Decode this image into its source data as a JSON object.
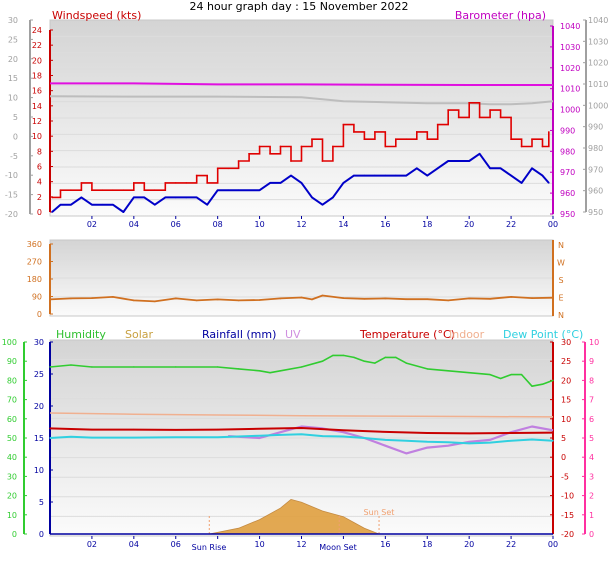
{
  "title": "24 hour graph day : 15 November 2022",
  "colors": {
    "wind": "#e00000",
    "wind_avg": "#0000c8",
    "barometer": "#e010e0",
    "baro_grey": "#bdbdbd",
    "direction": "#d07020",
    "humidity": "#30cc30",
    "solar": "#e0a040",
    "rainfall": "#0000a0",
    "uv": "#c080e0",
    "temperature": "#c80000",
    "indoor": "#f0b090",
    "dewpoint": "#30d0e0",
    "axis_left": "#a0a0a0",
    "axis_green": "#30cc30",
    "axis_pink": "#ff30a0",
    "axis_orange": "#d07020"
  },
  "chart_data": [
    {
      "type": "line",
      "panel": "wind-barometer",
      "series_labels": {
        "wind": "Windspeed (kts)",
        "barometer": "Barometer (hpa)"
      },
      "x_ticks": [
        "02",
        "04",
        "06",
        "08",
        "10",
        "12",
        "14",
        "16",
        "18",
        "20",
        "22",
        "00"
      ],
      "xlim": [
        0,
        24
      ],
      "outer_left_ticks": [
        "30",
        "25",
        "20",
        "15",
        "10",
        "5",
        "0",
        "-5",
        "-10",
        "-15",
        "-20"
      ],
      "wind_ticks": [
        "24",
        "22",
        "20",
        "18",
        "16",
        "14",
        "12",
        "10",
        "8",
        "6",
        "4",
        "2",
        "0"
      ],
      "baro_ticks": [
        "1040",
        "1030",
        "1020",
        "1010",
        "1000",
        "990",
        "980",
        "970",
        "960",
        "950"
      ],
      "outer_right_ticks": [
        "1040",
        "1030",
        "1020",
        "1010",
        "1000",
        "990",
        "980",
        "970",
        "960",
        "950"
      ],
      "wind_ylim": [
        0,
        25
      ],
      "baro_ylim": [
        950,
        1045
      ],
      "wind_gust": [
        [
          0.1,
          2
        ],
        [
          0.5,
          3
        ],
        [
          1,
          3
        ],
        [
          1.5,
          4
        ],
        [
          2,
          3
        ],
        [
          2.5,
          3
        ],
        [
          3,
          3
        ],
        [
          3.5,
          3
        ],
        [
          4,
          4
        ],
        [
          4.5,
          3
        ],
        [
          5,
          3
        ],
        [
          5.5,
          4
        ],
        [
          6,
          4
        ],
        [
          6.5,
          4
        ],
        [
          7,
          5
        ],
        [
          7.5,
          4
        ],
        [
          8,
          6
        ],
        [
          8.5,
          6
        ],
        [
          9,
          7
        ],
        [
          9.5,
          8
        ],
        [
          10,
          9
        ],
        [
          10.5,
          8
        ],
        [
          11,
          9
        ],
        [
          11.5,
          7
        ],
        [
          12,
          9
        ],
        [
          12.5,
          10
        ],
        [
          13,
          7
        ],
        [
          13.5,
          9
        ],
        [
          14,
          12
        ],
        [
          14.5,
          11
        ],
        [
          15,
          10
        ],
        [
          15.5,
          11
        ],
        [
          16,
          9
        ],
        [
          16.5,
          10
        ],
        [
          17,
          10
        ],
        [
          17.5,
          11
        ],
        [
          18,
          10
        ],
        [
          18.5,
          12
        ],
        [
          19,
          14
        ],
        [
          19.5,
          13
        ],
        [
          20,
          15
        ],
        [
          20.5,
          13
        ],
        [
          21,
          14
        ],
        [
          21.5,
          13
        ],
        [
          22,
          10
        ],
        [
          22.5,
          9
        ],
        [
          23,
          10
        ],
        [
          23.5,
          9
        ],
        [
          23.8,
          11
        ]
      ],
      "wind_avg": [
        [
          0.1,
          0
        ],
        [
          0.5,
          1
        ],
        [
          1,
          1
        ],
        [
          1.5,
          2
        ],
        [
          2,
          1
        ],
        [
          2.5,
          1
        ],
        [
          3,
          1
        ],
        [
          3.5,
          0
        ],
        [
          4,
          2
        ],
        [
          4.5,
          2
        ],
        [
          5,
          1
        ],
        [
          5.5,
          2
        ],
        [
          6,
          2
        ],
        [
          6.5,
          2
        ],
        [
          7,
          2
        ],
        [
          7.5,
          1
        ],
        [
          8,
          3
        ],
        [
          8.5,
          3
        ],
        [
          9,
          3
        ],
        [
          9.5,
          3
        ],
        [
          10,
          3
        ],
        [
          10.5,
          4
        ],
        [
          11,
          4
        ],
        [
          11.5,
          5
        ],
        [
          12,
          4
        ],
        [
          12.5,
          2
        ],
        [
          13,
          1
        ],
        [
          13.5,
          2
        ],
        [
          14,
          4
        ],
        [
          14.5,
          5
        ],
        [
          15,
          5
        ],
        [
          15.5,
          5
        ],
        [
          16,
          5
        ],
        [
          16.5,
          5
        ],
        [
          17,
          5
        ],
        [
          17.5,
          6
        ],
        [
          18,
          5
        ],
        [
          18.5,
          6
        ],
        [
          19,
          7
        ],
        [
          19.5,
          7
        ],
        [
          20,
          7
        ],
        [
          20.5,
          8
        ],
        [
          21,
          6
        ],
        [
          21.5,
          6
        ],
        [
          22,
          5
        ],
        [
          22.5,
          4
        ],
        [
          23,
          6
        ],
        [
          23.5,
          5
        ],
        [
          23.8,
          4
        ]
      ],
      "barometer": [
        [
          0,
          1016
        ],
        [
          4,
          1016
        ],
        [
          8,
          1015.5
        ],
        [
          12,
          1015.5
        ],
        [
          16,
          1015.3
        ],
        [
          20,
          1015.2
        ],
        [
          24,
          1015.2
        ]
      ],
      "barometer_grey": [
        [
          0,
          1009.5
        ],
        [
          4,
          1009.3
        ],
        [
          8,
          1009.3
        ],
        [
          12,
          1009
        ],
        [
          13,
          1008
        ],
        [
          14,
          1007
        ],
        [
          16,
          1006.5
        ],
        [
          18,
          1006
        ],
        [
          20,
          1006
        ],
        [
          21,
          1005.5
        ],
        [
          22,
          1005.5
        ],
        [
          23,
          1006
        ],
        [
          24,
          1007
        ]
      ]
    },
    {
      "type": "line",
      "panel": "wind-direction",
      "x_ticks": [
        "02",
        "04",
        "06",
        "08",
        "10",
        "12",
        "14",
        "16",
        "18",
        "20",
        "22",
        "00"
      ],
      "xlim": [
        0,
        24
      ],
      "left_ticks": [
        "360",
        "270",
        "180",
        "90",
        "0"
      ],
      "right_ticks": [
        "N",
        "W",
        "S",
        "E",
        "N"
      ],
      "ylim": [
        0,
        360
      ],
      "direction": [
        [
          0,
          75
        ],
        [
          1,
          80
        ],
        [
          2,
          82
        ],
        [
          3,
          88
        ],
        [
          4,
          70
        ],
        [
          5,
          65
        ],
        [
          6,
          80
        ],
        [
          7,
          70
        ],
        [
          8,
          75
        ],
        [
          9,
          70
        ],
        [
          10,
          72
        ],
        [
          11,
          80
        ],
        [
          12,
          85
        ],
        [
          12.5,
          75
        ],
        [
          13,
          95
        ],
        [
          14,
          82
        ],
        [
          15,
          78
        ],
        [
          16,
          80
        ],
        [
          17,
          76
        ],
        [
          18,
          76
        ],
        [
          19,
          70
        ],
        [
          20,
          80
        ],
        [
          21,
          78
        ],
        [
          22,
          88
        ],
        [
          23,
          82
        ],
        [
          24,
          84
        ]
      ]
    },
    {
      "type": "line",
      "panel": "temperature-humidity",
      "series_labels": {
        "humidity": "Humidity",
        "solar": "Solar",
        "rainfall": "Rainfall (mm)",
        "uv": "UV",
        "temperature": "Temperature (°C)",
        "indoor": "Indoor",
        "dewpoint": "Dew Point (°C)"
      },
      "x_ticks": [
        "02",
        "04",
        "06",
        "",
        "10",
        "12",
        "",
        "16",
        "18",
        "20",
        "22",
        "00"
      ],
      "xlim": [
        0,
        24
      ],
      "humidity_ticks": [
        "100",
        "90",
        "80",
        "70",
        "60",
        "50",
        "40",
        "30",
        "20",
        "10",
        "0"
      ],
      "rain_ticks": [
        "30",
        "25",
        "20",
        "15",
        "10",
        "5",
        "0"
      ],
      "temp_ticks": [
        "30",
        "25",
        "20",
        "15",
        "10",
        "5",
        "0",
        "-5",
        "-10",
        "-15",
        "-20"
      ],
      "uv_ticks": [
        "10",
        "9",
        "8",
        "7",
        "6",
        "5",
        "4",
        "3",
        "2",
        "1",
        "0"
      ],
      "annotations": {
        "sunrise": "Sun Rise",
        "moonset": "Moon Set",
        "sunset": "Sun Set"
      },
      "event_times": {
        "sunrise": 7.6,
        "moonset": 13.8,
        "sunset": 15.7
      },
      "humidity": [
        [
          0,
          87
        ],
        [
          1,
          88
        ],
        [
          2,
          87
        ],
        [
          4,
          87
        ],
        [
          6,
          87
        ],
        [
          8,
          87
        ],
        [
          9,
          86
        ],
        [
          10,
          85
        ],
        [
          10.5,
          84
        ],
        [
          11,
          85
        ],
        [
          12,
          87
        ],
        [
          13,
          90
        ],
        [
          13.5,
          93
        ],
        [
          14,
          93
        ],
        [
          14.5,
          92
        ],
        [
          15,
          90
        ],
        [
          15.5,
          89
        ],
        [
          16,
          92
        ],
        [
          16.5,
          92
        ],
        [
          17,
          89
        ],
        [
          18,
          86
        ],
        [
          19,
          85
        ],
        [
          20,
          84
        ],
        [
          21,
          83
        ],
        [
          21.5,
          81
        ],
        [
          22,
          83
        ],
        [
          22.5,
          83
        ],
        [
          23,
          77
        ],
        [
          23.5,
          78
        ],
        [
          24,
          80
        ]
      ],
      "temperature": [
        [
          0,
          7.5
        ],
        [
          2,
          7.2
        ],
        [
          4,
          7.2
        ],
        [
          6,
          7.1
        ],
        [
          8,
          7.2
        ],
        [
          10,
          7.4
        ],
        [
          12,
          7.6
        ],
        [
          14,
          7.0
        ],
        [
          16,
          6.6
        ],
        [
          18,
          6.3
        ],
        [
          20,
          6.2
        ],
        [
          22,
          6.3
        ],
        [
          24,
          6.4
        ]
      ],
      "dewpoint": [
        [
          0,
          5.0
        ],
        [
          1,
          5.3
        ],
        [
          2,
          5.1
        ],
        [
          4,
          5.1
        ],
        [
          6,
          5.2
        ],
        [
          8,
          5.2
        ],
        [
          10,
          5.6
        ],
        [
          11,
          5.8
        ],
        [
          12,
          6.0
        ],
        [
          13,
          5.5
        ],
        [
          14,
          5.4
        ],
        [
          15,
          5.0
        ],
        [
          16,
          4.5
        ],
        [
          17,
          4.3
        ],
        [
          18,
          4.0
        ],
        [
          19,
          3.9
        ],
        [
          20,
          3.6
        ],
        [
          21,
          3.8
        ],
        [
          22,
          4.3
        ],
        [
          23,
          4.6
        ],
        [
          24,
          4.3
        ]
      ],
      "indoor": [
        [
          0,
          11.5
        ],
        [
          4,
          11.2
        ],
        [
          8,
          11.0
        ],
        [
          12,
          10.8
        ],
        [
          16,
          10.7
        ],
        [
          20,
          10.6
        ],
        [
          24,
          10.5
        ]
      ],
      "uv": [
        [
          8.5,
          5.1
        ],
        [
          10,
          5.0
        ],
        [
          11,
          5.3
        ],
        [
          12,
          5.6
        ],
        [
          13,
          5.5
        ],
        [
          14,
          5.3
        ],
        [
          15,
          5.0
        ],
        [
          16,
          4.6
        ],
        [
          17,
          4.2
        ],
        [
          18,
          4.5
        ],
        [
          19,
          4.6
        ],
        [
          20,
          4.8
        ],
        [
          21,
          4.9
        ],
        [
          22,
          5.3
        ],
        [
          23,
          5.6
        ],
        [
          24,
          5.4
        ]
      ],
      "solar": [
        [
          7.6,
          0
        ],
        [
          9,
          2
        ],
        [
          10,
          5
        ],
        [
          11,
          9
        ],
        [
          11.5,
          12
        ],
        [
          12,
          11
        ],
        [
          13,
          8
        ],
        [
          14,
          6
        ],
        [
          14.5,
          4
        ],
        [
          15,
          2
        ],
        [
          15.7,
          0
        ]
      ],
      "rainfall": [
        [
          0,
          0
        ],
        [
          24,
          0
        ]
      ]
    }
  ]
}
